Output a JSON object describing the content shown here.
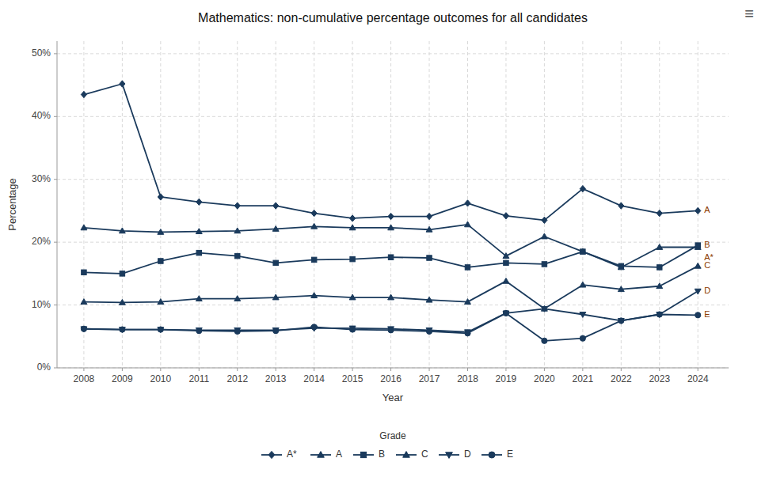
{
  "chart_data": {
    "type": "line",
    "title": "Mathematics: non-cumulative percentage outcomes for all candidates",
    "x_label": "Year",
    "y_label": "Percentage",
    "x": [
      2008,
      2009,
      2010,
      2011,
      2012,
      2013,
      2014,
      2015,
      2016,
      2017,
      2018,
      2019,
      2020,
      2021,
      2022,
      2023,
      2024
    ],
    "series": [
      {
        "name": "A*",
        "color": "#1a3a5c",
        "marker": "diamond",
        "values": [
          43.5,
          45.2,
          27.2,
          26.4,
          25.8,
          25.8,
          24.6,
          23.8,
          24.1,
          24.1,
          26.2,
          24.2,
          23.5,
          28.5,
          25.8,
          24.6,
          25.0
        ]
      },
      {
        "name": "A",
        "color": "#1a3a5c",
        "marker": "triangle-up",
        "values": [
          22.3,
          21.8,
          21.6,
          21.7,
          21.8,
          22.1,
          22.5,
          22.3,
          22.3,
          22.0,
          22.8,
          17.8,
          20.9,
          18.5,
          16.0,
          19.2,
          19.2
        ]
      },
      {
        "name": "B",
        "color": "#1a3a5c",
        "marker": "square",
        "values": [
          15.2,
          15.0,
          17.0,
          18.3,
          17.8,
          16.7,
          17.2,
          17.3,
          17.6,
          17.5,
          16.0,
          16.7,
          16.5,
          18.5,
          16.2,
          16.0,
          19.5
        ]
      },
      {
        "name": "C",
        "color": "#1a3a5c",
        "marker": "triangle-up",
        "values": [
          10.5,
          10.4,
          10.5,
          11.0,
          11.0,
          11.2,
          11.5,
          11.2,
          11.2,
          10.8,
          10.5,
          13.8,
          9.4,
          13.2,
          12.5,
          13.0,
          16.2
        ]
      },
      {
        "name": "D",
        "color": "#1a3a5c",
        "marker": "triangle-down",
        "values": [
          6.2,
          6.1,
          6.1,
          6.0,
          6.0,
          6.0,
          6.3,
          6.3,
          6.2,
          6.0,
          5.7,
          8.7,
          9.4,
          8.5,
          7.5,
          8.5,
          12.2
        ]
      },
      {
        "name": "E",
        "color": "#1a3a5c",
        "marker": "circle",
        "values": [
          6.2,
          6.1,
          6.1,
          5.9,
          5.8,
          5.9,
          6.5,
          6.1,
          6.0,
          5.8,
          5.5,
          8.7,
          4.3,
          4.7,
          7.5,
          8.5,
          8.4
        ]
      }
    ],
    "xlim": [
      2007.3,
      2024.8
    ],
    "xticks": [
      2008,
      2009,
      2010,
      2011,
      2012,
      2013,
      2014,
      2015,
      2016,
      2017,
      2018,
      2019,
      2020,
      2021,
      2022,
      2023,
      2024
    ],
    "ylim": [
      0,
      52
    ],
    "yticks": [
      {
        "value": 0,
        "label": "0%"
      },
      {
        "value": 10,
        "label": "10%"
      },
      {
        "value": 20,
        "label": "20%"
      },
      {
        "value": 30,
        "label": "30%"
      },
      {
        "value": 40,
        "label": "40%"
      },
      {
        "value": 50,
        "label": "50%"
      }
    ],
    "grid": true,
    "legend": "bottom",
    "legend_title": "Grade",
    "annotations": [
      {
        "text": "A",
        "x": 2024,
        "y": 25.0,
        "color": "#8B3A00"
      },
      {
        "text": "B",
        "x": 2024,
        "y": 19.5,
        "color": "#8B3A00"
      },
      {
        "text": "A*",
        "x": 2024,
        "y": 17.5,
        "color": "#8B3A00"
      },
      {
        "text": "C",
        "x": 2024,
        "y": 16.2,
        "color": "#8B3A00"
      },
      {
        "text": "D",
        "x": 2024,
        "y": 12.2,
        "color": "#8B3A00"
      },
      {
        "text": "E",
        "x": 2024,
        "y": 8.4,
        "color": "#8B3A00"
      },
      {
        "text": "≡"
      }
    ]
  }
}
